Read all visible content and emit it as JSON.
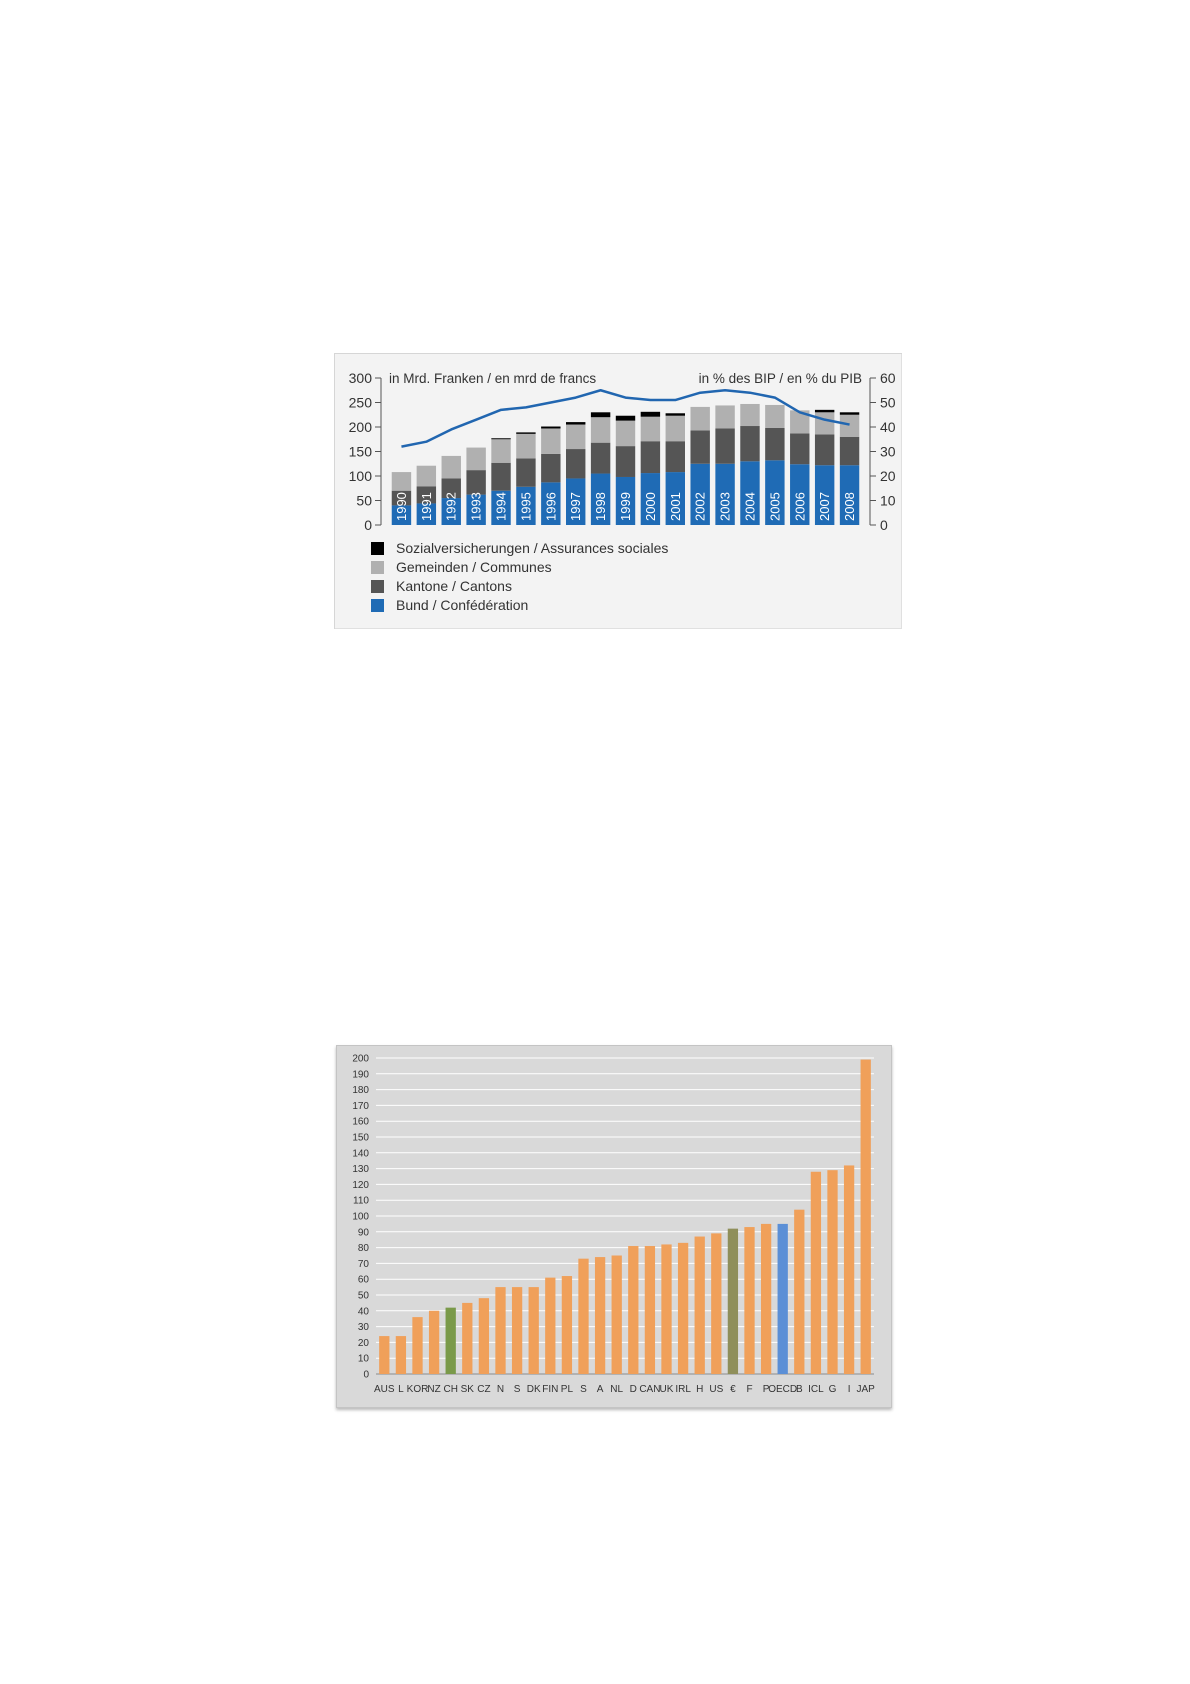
{
  "chart_data": [
    {
      "type": "bar",
      "stacked": true,
      "title_left": "in Mrd. Franken / en mrd de francs",
      "title_right": "in % des BIP / en % du PIB",
      "categories": [
        "1990",
        "1991",
        "1992",
        "1993",
        "1994",
        "1995",
        "1996",
        "1997",
        "1998",
        "1999",
        "2000",
        "2001",
        "2002",
        "2003",
        "2004",
        "2005",
        "2006",
        "2007",
        "2008"
      ],
      "series": [
        {
          "name": "Bund / Confédération",
          "color": "#1f6bb5",
          "values": [
            40,
            44,
            55,
            62,
            70,
            78,
            87,
            95,
            105,
            98,
            106,
            108,
            125,
            125,
            130,
            132,
            124,
            122,
            122
          ]
        },
        {
          "name": "Kantone / Cantons",
          "color": "#555555",
          "values": [
            30,
            35,
            40,
            50,
            57,
            58,
            58,
            60,
            63,
            63,
            65,
            63,
            68,
            72,
            72,
            66,
            63,
            63,
            58
          ]
        },
        {
          "name": "Gemeinden / Communes",
          "color": "#b0b0b0",
          "values": [
            38,
            42,
            46,
            46,
            48,
            50,
            52,
            50,
            52,
            52,
            50,
            52,
            48,
            47,
            45,
            47,
            47,
            45,
            45
          ]
        },
        {
          "name": "Sozialversicherungen / Assurances sociales",
          "color": "#000000",
          "values": [
            0,
            0,
            0,
            0,
            2,
            3,
            4,
            5,
            10,
            10,
            10,
            5,
            0,
            0,
            0,
            0,
            0,
            5,
            5
          ]
        }
      ],
      "line": {
        "axis": "right",
        "color": "#2166b0",
        "values": [
          32,
          34,
          39,
          43,
          47,
          48,
          50,
          52,
          55,
          52,
          51,
          51,
          54,
          55,
          54,
          52,
          46,
          43,
          41
        ]
      },
      "ylim_left": [
        0,
        300
      ],
      "yticks_left": [
        0,
        50,
        100,
        150,
        200,
        250,
        300
      ],
      "ylim_right": [
        0,
        60
      ],
      "yticks_right": [
        0,
        10,
        20,
        30,
        40,
        50,
        60
      ],
      "legend": [
        "Sozialversicherungen / Assurances sociales",
        "Gemeinden / Communes",
        "Kantone / Cantons",
        "Bund / Confédération"
      ],
      "legend_position": "bottom-left"
    },
    {
      "type": "bar",
      "categories": [
        "AUS",
        "L",
        "KOR",
        "NZ",
        "CH",
        "SK",
        "CZ",
        "N",
        "S",
        "DK",
        "FIN",
        "PL",
        "S",
        "A",
        "NL",
        "D",
        "CAN",
        "UK",
        "IRL",
        "H",
        "US",
        "€",
        "F",
        "P",
        "OECD",
        "B",
        "ICL",
        "G",
        "I",
        "JAP"
      ],
      "values": [
        24,
        24,
        36,
        40,
        42,
        45,
        48,
        55,
        55,
        55,
        61,
        62,
        73,
        74,
        75,
        81,
        81,
        82,
        83,
        87,
        89,
        92,
        93,
        95,
        95,
        104,
        128,
        129,
        132,
        199
      ],
      "colors": [
        "#f0a05a",
        "#f0a05a",
        "#f0a05a",
        "#f0a05a",
        "#7a9a4a",
        "#f0a05a",
        "#f0a05a",
        "#f0a05a",
        "#f0a05a",
        "#f0a05a",
        "#f0a05a",
        "#f0a05a",
        "#f0a05a",
        "#f0a05a",
        "#f0a05a",
        "#f0a05a",
        "#f0a05a",
        "#f0a05a",
        "#f0a05a",
        "#f0a05a",
        "#f0a05a",
        "#8f8f5a",
        "#f0a05a",
        "#f0a05a",
        "#5b8fd6",
        "#f0a05a",
        "#f0a05a",
        "#f0a05a",
        "#f0a05a",
        "#f0a05a"
      ],
      "ylim": [
        0,
        200
      ],
      "yticks": [
        0,
        10,
        20,
        30,
        40,
        50,
        60,
        70,
        80,
        90,
        100,
        110,
        120,
        130,
        140,
        150,
        160,
        170,
        180,
        190,
        200
      ],
      "grid": true
    }
  ]
}
